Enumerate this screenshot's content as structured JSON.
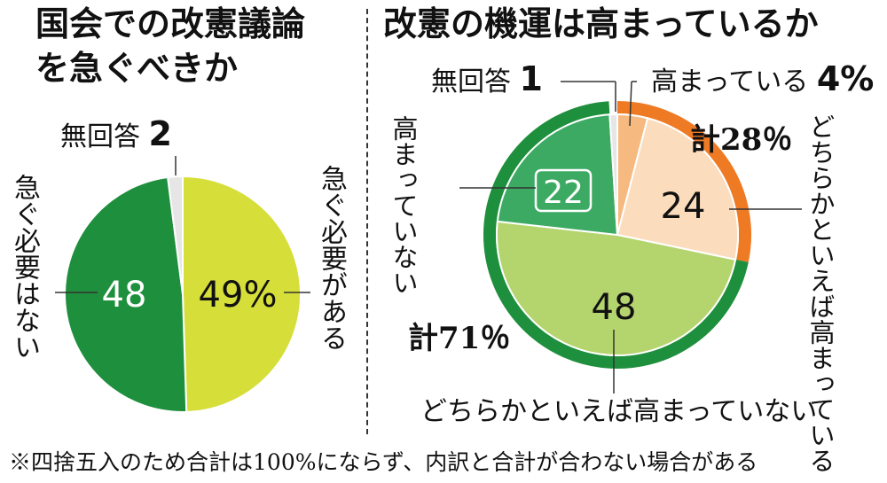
{
  "left": {
    "title_line1": "国会での改憲議論",
    "title_line2": "を急ぐべきか",
    "no_answer_label": "無回答",
    "no_answer_value": "2",
    "need_hurry_label": "急ぐ必要がある",
    "no_need_label": "急ぐ必要はない",
    "value_need": "49%",
    "value_no_need": "48"
  },
  "right": {
    "title": "改憲の機運は高まっているか",
    "no_answer_label": "無回答",
    "no_answer_value": "1",
    "rising_label": "高まっている",
    "rising_value": "4%",
    "somewhat_rising_label": "どちらかといえば高まっている",
    "somewhat_rising_value": "24",
    "not_rising_label": "高まっていない",
    "not_rising_value": "22",
    "somewhat_not_rising_label": "どちらかといえば高まっていない",
    "somewhat_not_rising_value": "48",
    "total_rising": "計28％",
    "total_not_rising": "計71％"
  },
  "footnote": "※四捨五入のため合計は100%にならず、内訳と合計が合わない場合がある",
  "colors": {
    "need": "#d6de3a",
    "no_need": "#1e8f3c",
    "no_answer": "#e6e6e6",
    "rising": "#f6b980",
    "somewhat_rising": "#fbdcbc",
    "not_rising": "#3daa63",
    "somewhat_not_rising": "#b4d46e",
    "ring_rising": "#ef7a24",
    "ring_not_rising": "#1e8f3c"
  },
  "chart_data": [
    {
      "type": "pie",
      "title": "国会での改憲議論を急ぐべきか",
      "categories": [
        "急ぐ必要がある",
        "急ぐ必要はない",
        "無回答"
      ],
      "values": [
        49,
        48,
        2
      ],
      "unit": "%"
    },
    {
      "type": "pie",
      "title": "改憲の機運は高まっているか",
      "categories": [
        "高まっている",
        "どちらかといえば高まっている",
        "どちらかといえば高まっていない",
        "高まっていない",
        "無回答"
      ],
      "values": [
        4,
        24,
        48,
        22,
        1
      ],
      "unit": "%",
      "groups": [
        {
          "name": "計28％",
          "value": 28
        },
        {
          "name": "計71％",
          "value": 71
        }
      ]
    }
  ]
}
